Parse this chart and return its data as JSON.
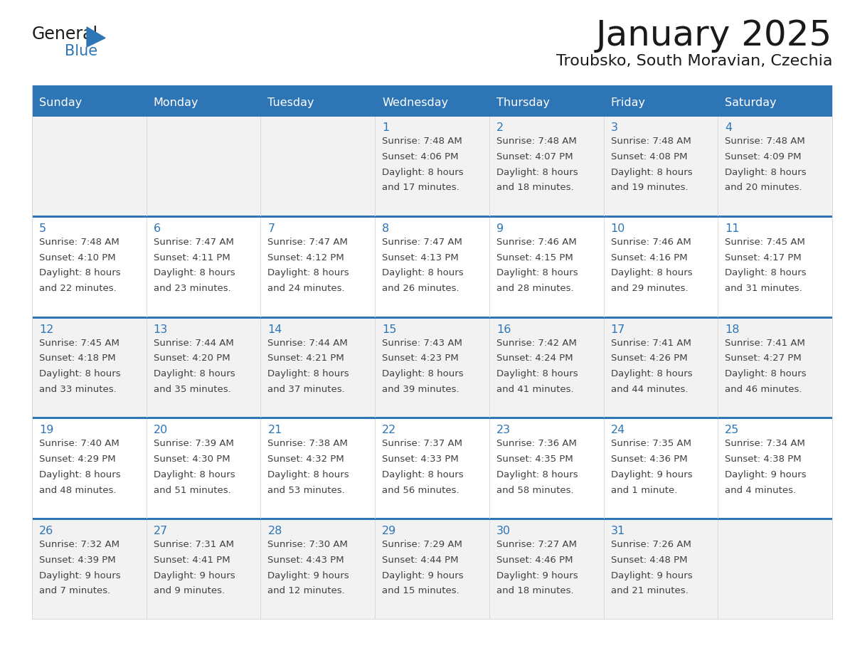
{
  "title": "January 2025",
  "subtitle": "Troubsko, South Moravian, Czechia",
  "days_of_week": [
    "Sunday",
    "Monday",
    "Tuesday",
    "Wednesday",
    "Thursday",
    "Friday",
    "Saturday"
  ],
  "header_bg": "#2E75B6",
  "header_text": "#FFFFFF",
  "row_bg_colors": [
    "#F2F2F2",
    "#FFFFFF",
    "#F2F2F2",
    "#FFFFFF",
    "#F2F2F2"
  ],
  "divider_color": "#2E75B6",
  "cell_border_color": "#D9D9D9",
  "day_num_color": "#2E75B6",
  "cell_text_color": "#404040",
  "calendar_data": [
    [
      null,
      null,
      null,
      {
        "day": 1,
        "sunrise": "7:48 AM",
        "sunset": "4:06 PM",
        "dl1": "Daylight: 8 hours",
        "dl2": "and 17 minutes."
      },
      {
        "day": 2,
        "sunrise": "7:48 AM",
        "sunset": "4:07 PM",
        "dl1": "Daylight: 8 hours",
        "dl2": "and 18 minutes."
      },
      {
        "day": 3,
        "sunrise": "7:48 AM",
        "sunset": "4:08 PM",
        "dl1": "Daylight: 8 hours",
        "dl2": "and 19 minutes."
      },
      {
        "day": 4,
        "sunrise": "7:48 AM",
        "sunset": "4:09 PM",
        "dl1": "Daylight: 8 hours",
        "dl2": "and 20 minutes."
      }
    ],
    [
      {
        "day": 5,
        "sunrise": "7:48 AM",
        "sunset": "4:10 PM",
        "dl1": "Daylight: 8 hours",
        "dl2": "and 22 minutes."
      },
      {
        "day": 6,
        "sunrise": "7:47 AM",
        "sunset": "4:11 PM",
        "dl1": "Daylight: 8 hours",
        "dl2": "and 23 minutes."
      },
      {
        "day": 7,
        "sunrise": "7:47 AM",
        "sunset": "4:12 PM",
        "dl1": "Daylight: 8 hours",
        "dl2": "and 24 minutes."
      },
      {
        "day": 8,
        "sunrise": "7:47 AM",
        "sunset": "4:13 PM",
        "dl1": "Daylight: 8 hours",
        "dl2": "and 26 minutes."
      },
      {
        "day": 9,
        "sunrise": "7:46 AM",
        "sunset": "4:15 PM",
        "dl1": "Daylight: 8 hours",
        "dl2": "and 28 minutes."
      },
      {
        "day": 10,
        "sunrise": "7:46 AM",
        "sunset": "4:16 PM",
        "dl1": "Daylight: 8 hours",
        "dl2": "and 29 minutes."
      },
      {
        "day": 11,
        "sunrise": "7:45 AM",
        "sunset": "4:17 PM",
        "dl1": "Daylight: 8 hours",
        "dl2": "and 31 minutes."
      }
    ],
    [
      {
        "day": 12,
        "sunrise": "7:45 AM",
        "sunset": "4:18 PM",
        "dl1": "Daylight: 8 hours",
        "dl2": "and 33 minutes."
      },
      {
        "day": 13,
        "sunrise": "7:44 AM",
        "sunset": "4:20 PM",
        "dl1": "Daylight: 8 hours",
        "dl2": "and 35 minutes."
      },
      {
        "day": 14,
        "sunrise": "7:44 AM",
        "sunset": "4:21 PM",
        "dl1": "Daylight: 8 hours",
        "dl2": "and 37 minutes."
      },
      {
        "day": 15,
        "sunrise": "7:43 AM",
        "sunset": "4:23 PM",
        "dl1": "Daylight: 8 hours",
        "dl2": "and 39 minutes."
      },
      {
        "day": 16,
        "sunrise": "7:42 AM",
        "sunset": "4:24 PM",
        "dl1": "Daylight: 8 hours",
        "dl2": "and 41 minutes."
      },
      {
        "day": 17,
        "sunrise": "7:41 AM",
        "sunset": "4:26 PM",
        "dl1": "Daylight: 8 hours",
        "dl2": "and 44 minutes."
      },
      {
        "day": 18,
        "sunrise": "7:41 AM",
        "sunset": "4:27 PM",
        "dl1": "Daylight: 8 hours",
        "dl2": "and 46 minutes."
      }
    ],
    [
      {
        "day": 19,
        "sunrise": "7:40 AM",
        "sunset": "4:29 PM",
        "dl1": "Daylight: 8 hours",
        "dl2": "and 48 minutes."
      },
      {
        "day": 20,
        "sunrise": "7:39 AM",
        "sunset": "4:30 PM",
        "dl1": "Daylight: 8 hours",
        "dl2": "and 51 minutes."
      },
      {
        "day": 21,
        "sunrise": "7:38 AM",
        "sunset": "4:32 PM",
        "dl1": "Daylight: 8 hours",
        "dl2": "and 53 minutes."
      },
      {
        "day": 22,
        "sunrise": "7:37 AM",
        "sunset": "4:33 PM",
        "dl1": "Daylight: 8 hours",
        "dl2": "and 56 minutes."
      },
      {
        "day": 23,
        "sunrise": "7:36 AM",
        "sunset": "4:35 PM",
        "dl1": "Daylight: 8 hours",
        "dl2": "and 58 minutes."
      },
      {
        "day": 24,
        "sunrise": "7:35 AM",
        "sunset": "4:36 PM",
        "dl1": "Daylight: 9 hours",
        "dl2": "and 1 minute."
      },
      {
        "day": 25,
        "sunrise": "7:34 AM",
        "sunset": "4:38 PM",
        "dl1": "Daylight: 9 hours",
        "dl2": "and 4 minutes."
      }
    ],
    [
      {
        "day": 26,
        "sunrise": "7:32 AM",
        "sunset": "4:39 PM",
        "dl1": "Daylight: 9 hours",
        "dl2": "and 7 minutes."
      },
      {
        "day": 27,
        "sunrise": "7:31 AM",
        "sunset": "4:41 PM",
        "dl1": "Daylight: 9 hours",
        "dl2": "and 9 minutes."
      },
      {
        "day": 28,
        "sunrise": "7:30 AM",
        "sunset": "4:43 PM",
        "dl1": "Daylight: 9 hours",
        "dl2": "and 12 minutes."
      },
      {
        "day": 29,
        "sunrise": "7:29 AM",
        "sunset": "4:44 PM",
        "dl1": "Daylight: 9 hours",
        "dl2": "and 15 minutes."
      },
      {
        "day": 30,
        "sunrise": "7:27 AM",
        "sunset": "4:46 PM",
        "dl1": "Daylight: 9 hours",
        "dl2": "and 18 minutes."
      },
      {
        "day": 31,
        "sunrise": "7:26 AM",
        "sunset": "4:48 PM",
        "dl1": "Daylight: 9 hours",
        "dl2": "and 21 minutes."
      },
      null
    ]
  ],
  "fig_width": 11.88,
  "fig_height": 9.18
}
